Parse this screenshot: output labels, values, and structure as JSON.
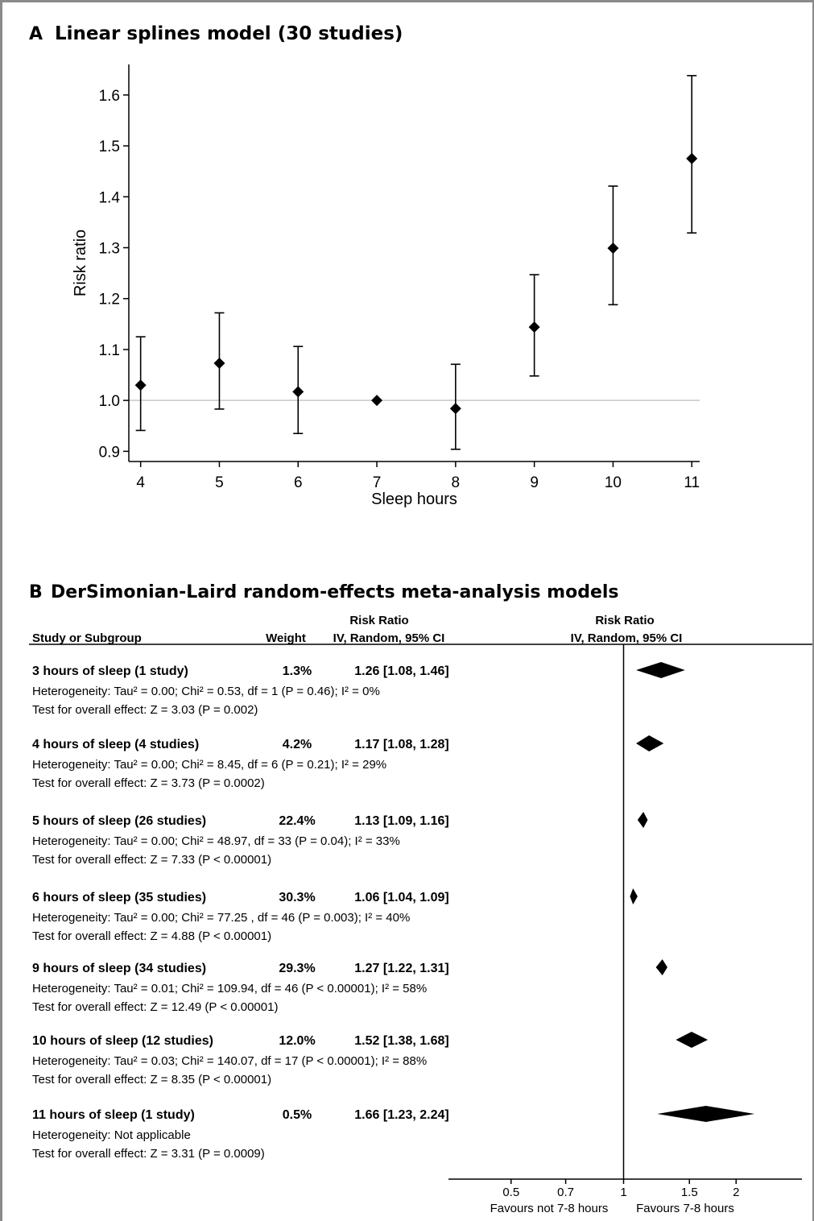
{
  "panel_a": {
    "letter": "A",
    "title": "Linear splines model (30 studies)"
  },
  "panel_b": {
    "letter": "B",
    "title": "DerSimonian-Laird random-effects meta-analysis models"
  },
  "chart_data": [
    {
      "type": "scatter",
      "title": "Linear splines model (30 studies)",
      "xlabel": "Sleep hours",
      "ylabel": "Risk ratio",
      "x": [
        4,
        5,
        6,
        7,
        8,
        9,
        10,
        11
      ],
      "y": [
        1.03,
        1.073,
        1.017,
        1.0,
        0.984,
        1.144,
        1.299,
        1.475
      ],
      "ci_low": [
        0.941,
        0.983,
        0.935,
        null,
        0.904,
        1.048,
        1.188,
        1.329
      ],
      "ci_high": [
        1.125,
        1.172,
        1.106,
        null,
        1.071,
        1.247,
        1.421,
        1.638
      ],
      "reference_y": 1.0,
      "xticks": [
        "4",
        "5",
        "6",
        "7",
        "8",
        "9",
        "10",
        "11"
      ],
      "yticks": [
        "0.9",
        "1.0",
        "1.1",
        "1.2",
        "1.3",
        "1.4",
        "1.5",
        "1.6"
      ],
      "xlim": [
        3.85,
        11.1
      ],
      "ylim": [
        0.88,
        1.66
      ],
      "grid": false,
      "marker": "diamond"
    },
    {
      "type": "forest",
      "title": "DerSimonian-Laird random-effects meta-analysis models",
      "headers": {
        "risk_ratio_top_left": "Risk Ratio",
        "risk_ratio_top_right": "Risk Ratio",
        "study": "Study or Subgroup",
        "weight": "Weight",
        "ci_left": "IV, Random, 95% CI",
        "ci_right": "IV, Random, 95% CI"
      },
      "scale": "log",
      "xticks": [
        "0.5",
        "0.7",
        "1",
        "1.5",
        "2"
      ],
      "xlim": [
        0.34,
        3.0
      ],
      "favours_left": "Favours not 7-8 hours",
      "favours_right": "Favours 7-8 hours",
      "subgroups": [
        {
          "name": "3 hours of sleep (1 study)",
          "weight": "1.3%",
          "ci_text": "1.26 [1.08, 1.46]",
          "rr": 1.26,
          "lo": 1.08,
          "hi": 1.46,
          "heterogeneity": "Heterogeneity: Tau² = 0.00; Chi² = 0.53, df = 1 (P = 0.46); I² = 0%",
          "overall": "Test for overall effect: Z = 3.03 (P = 0.002)"
        },
        {
          "name": "4 hours of sleep (4 studies)",
          "weight": "4.2%",
          "ci_text": "1.17 [1.08, 1.28]",
          "rr": 1.17,
          "lo": 1.08,
          "hi": 1.28,
          "heterogeneity": "Heterogeneity: Tau² = 0.00; Chi² = 8.45, df = 6 (P = 0.21); I² = 29%",
          "overall": "Test for overall effect: Z = 3.73 (P = 0.0002)"
        },
        {
          "name": "5 hours of sleep (26 studies)",
          "weight": "22.4%",
          "ci_text": "1.13 [1.09, 1.16]",
          "rr": 1.13,
          "lo": 1.09,
          "hi": 1.16,
          "heterogeneity": "Heterogeneity: Tau² = 0.00; Chi² = 48.97, df = 33 (P = 0.04); I² = 33%",
          "overall": "Test for overall effect: Z = 7.33 (P < 0.00001)"
        },
        {
          "name": "6 hours of sleep (35 studies)",
          "weight": "30.3%",
          "ci_text": "1.06 [1.04, 1.09]",
          "rr": 1.06,
          "lo": 1.04,
          "hi": 1.09,
          "heterogeneity": "Heterogeneity: Tau² = 0.00; Chi² = 77.25 , df = 46 (P = 0.003); I² = 40%",
          "overall": "Test for overall effect: Z = 4.88 (P < 0.00001)"
        },
        {
          "name": "9 hours of sleep (34 studies)",
          "weight": "29.3%",
          "ci_text": "1.27 [1.22, 1.31]",
          "rr": 1.27,
          "lo": 1.22,
          "hi": 1.31,
          "heterogeneity": "Heterogeneity: Tau² = 0.01; Chi² = 109.94, df = 46 (P < 0.00001); I² = 58%",
          "overall": "Test for overall effect: Z = 12.49 (P < 0.00001)"
        },
        {
          "name": "10 hours of sleep (12 studies)",
          "weight": "12.0%",
          "ci_text": "1.52 [1.38, 1.68]",
          "rr": 1.52,
          "lo": 1.38,
          "hi": 1.68,
          "heterogeneity": "Heterogeneity: Tau² = 0.03; Chi² = 140.07, df = 17 (P < 0.00001); I² = 88%",
          "overall": "Test for overall effect: Z = 8.35 (P < 0.00001)"
        },
        {
          "name": "11 hours of sleep (1 study)",
          "weight": "0.5%",
          "ci_text": "1.66 [1.23, 2.24]",
          "rr": 1.66,
          "lo": 1.23,
          "hi": 2.24,
          "heterogeneity": "Heterogeneity: Not applicable",
          "overall": "Test for overall effect: Z = 3.31 (P = 0.0009)"
        }
      ]
    }
  ]
}
